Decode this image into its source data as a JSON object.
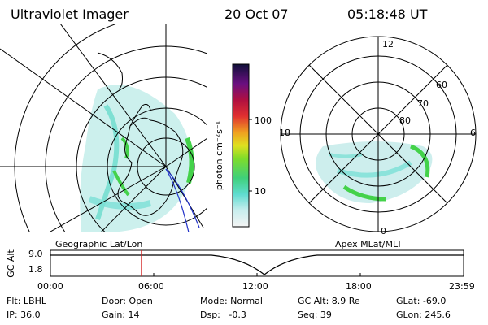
{
  "header": {
    "instrument": "Ultraviolet Imager",
    "date": "20 Oct 07",
    "time": "05:18:48 UT"
  },
  "colorbar": {
    "ticks": [
      "100",
      "10"
    ],
    "label": "photon cm⁻²s⁻¹"
  },
  "polar_plot": {
    "mlt_labels": [
      "12",
      "18",
      "6",
      "0"
    ],
    "lat_labels": [
      "60",
      "70",
      "80"
    ]
  },
  "panel_labels": {
    "left": "Geographic Lat/Lon",
    "right": "Apex MLat/MLT"
  },
  "altitude_plot": {
    "ylabel": "GC Alt",
    "yticks": [
      "9.0",
      "1.8"
    ],
    "xticks": [
      "00:00",
      "06:00",
      "12:00",
      "18:00",
      "23:59"
    ],
    "marker_color": "#d22020"
  },
  "info": {
    "filter": "Flt: LBHL",
    "door": "Door: Open",
    "mode": "Mode: Normal",
    "gc_alt": "GC Alt: 8.9 Re",
    "glat": "GLat: -69.0",
    "ip": "IP: 36.0",
    "gain": "Gain: 14",
    "dsp": "Dsp:   -0.3",
    "seq": "Seq: 39",
    "glon": "GLon: 245.6"
  }
}
